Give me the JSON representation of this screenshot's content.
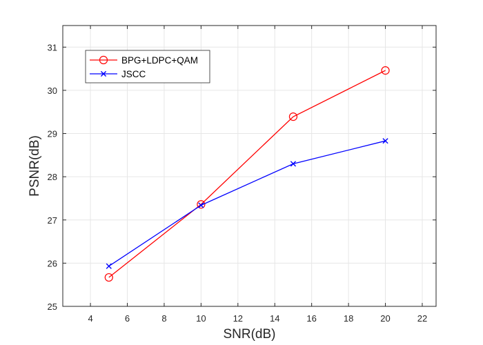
{
  "chart_data": {
    "type": "line",
    "xlabel": "SNR(dB)",
    "ylabel": "PSNR(dB)",
    "xlim": [
      2.5,
      22.75
    ],
    "ylim": [
      25,
      31.5
    ],
    "xticks": [
      4,
      6,
      8,
      10,
      12,
      14,
      16,
      18,
      20,
      22
    ],
    "yticks": [
      25,
      26,
      27,
      28,
      29,
      30,
      31
    ],
    "grid": true,
    "legend_position": "top-left",
    "series": [
      {
        "name": "BPG+LDPC+QAM",
        "color": "#ff0000",
        "marker": "circle",
        "x": [
          5,
          10,
          15,
          20
        ],
        "y": [
          25.67,
          27.36,
          29.39,
          30.46
        ]
      },
      {
        "name": "JSCC",
        "color": "#0000ff",
        "marker": "cross",
        "x": [
          5,
          10,
          15,
          20
        ],
        "y": [
          25.93,
          27.34,
          28.3,
          28.83
        ]
      }
    ]
  }
}
